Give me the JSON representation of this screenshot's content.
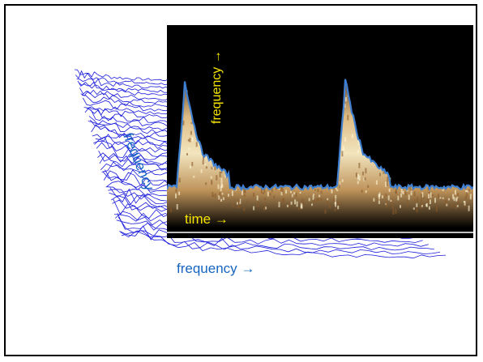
{
  "waterfall": {
    "frequency_label": "frequency →",
    "rotated_label": "frequency",
    "line_color": "#1a1adb"
  },
  "spectrogram": {
    "time_label": "time →",
    "frequency_label": "frequency →",
    "background_color": "#000000",
    "envelope_color": "#3f7fd0",
    "label_color": "#f5e400"
  }
}
